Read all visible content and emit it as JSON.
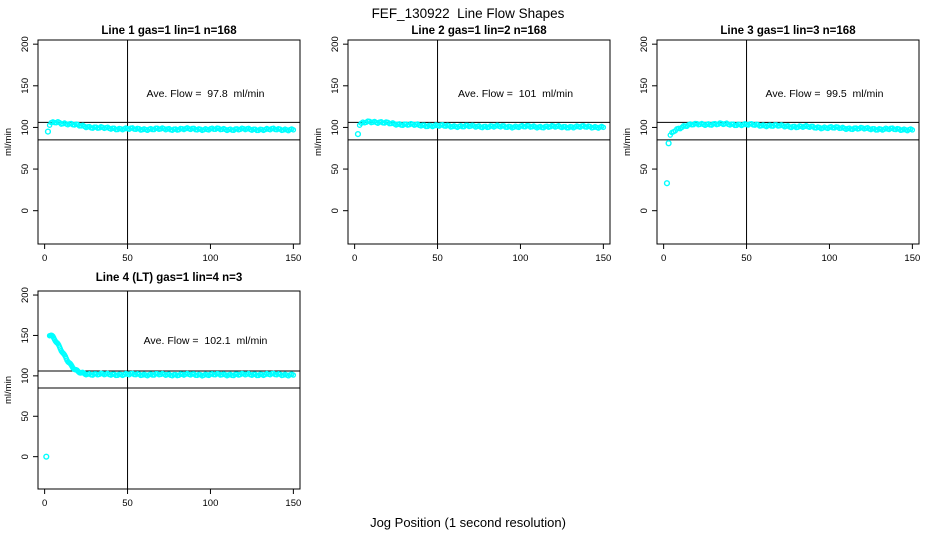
{
  "figure": {
    "title": "FEF_130922  Line Flow Shapes",
    "xlabel": "Jog Position (1 second resolution)",
    "marker_color": "#00FFFF",
    "line_color": "#000000"
  },
  "chart_data": [
    {
      "type": "scatter",
      "title": "Line 1 gas=1 lin=1 n=168",
      "annotation": "Ave. Flow =  97.8  ml/min",
      "ave_flow_ml_min": 97.8,
      "n": 168,
      "ylabel": "ml/min",
      "xlim": [
        -4,
        154
      ],
      "ylim": [
        -40,
        205
      ],
      "xticks": [
        0,
        50,
        100,
        150
      ],
      "yticks": [
        0,
        50,
        100,
        150,
        200
      ],
      "vlines": [
        50
      ],
      "hlines": [
        106,
        85
      ],
      "outlier_points": [
        [
          2,
          95
        ]
      ],
      "curve": [
        [
          3,
          103
        ],
        [
          4,
          105
        ],
        [
          6,
          106.5
        ],
        [
          8,
          106.5
        ],
        [
          10,
          105.5
        ],
        [
          13,
          104.5
        ],
        [
          16,
          103.5
        ],
        [
          20,
          102.5
        ],
        [
          24,
          101.5
        ],
        [
          28,
          100.5
        ],
        [
          33,
          99.5
        ],
        [
          38,
          99
        ],
        [
          45,
          98.5
        ],
        [
          55,
          98
        ],
        [
          70,
          98
        ],
        [
          90,
          98
        ],
        [
          110,
          97.8
        ],
        [
          130,
          97.6
        ],
        [
          150,
          97.6
        ]
      ]
    },
    {
      "type": "scatter",
      "title": "Line 2 gas=1 lin=2 n=168",
      "annotation": "Ave. Flow =  101  ml/min",
      "ave_flow_ml_min": 101,
      "n": 168,
      "ylabel": "ml/min",
      "xlim": [
        -4,
        154
      ],
      "ylim": [
        -40,
        205
      ],
      "xticks": [
        0,
        50,
        100,
        150
      ],
      "yticks": [
        0,
        50,
        100,
        150,
        200
      ],
      "vlines": [
        50
      ],
      "hlines": [
        106,
        85
      ],
      "outlier_points": [
        [
          2,
          92
        ]
      ],
      "curve": [
        [
          3,
          103
        ],
        [
          5,
          105.5
        ],
        [
          7,
          107
        ],
        [
          9,
          107.5
        ],
        [
          11,
          107
        ],
        [
          14,
          106
        ],
        [
          17,
          105.5
        ],
        [
          21,
          105
        ],
        [
          25,
          104.3
        ],
        [
          30,
          103.6
        ],
        [
          36,
          103
        ],
        [
          43,
          102.4
        ],
        [
          50,
          102
        ],
        [
          60,
          101.6
        ],
        [
          75,
          101.2
        ],
        [
          95,
          101
        ],
        [
          115,
          100.8
        ],
        [
          135,
          100.7
        ],
        [
          150,
          100.6
        ]
      ]
    },
    {
      "type": "scatter",
      "title": "Line 3 gas=1 lin=3 n=168",
      "annotation": "Ave. Flow =  99.5  ml/min",
      "ave_flow_ml_min": 99.5,
      "n": 168,
      "ylabel": "ml/min",
      "xlim": [
        -4,
        154
      ],
      "ylim": [
        -40,
        205
      ],
      "xticks": [
        0,
        50,
        100,
        150
      ],
      "yticks": [
        0,
        50,
        100,
        150,
        200
      ],
      "vlines": [
        50
      ],
      "hlines": [
        106,
        85
      ],
      "outlier_points": [
        [
          2,
          33
        ],
        [
          3,
          81
        ]
      ],
      "curve": [
        [
          4,
          90
        ],
        [
          5,
          93
        ],
        [
          6,
          95.5
        ],
        [
          8,
          98
        ],
        [
          10,
          100
        ],
        [
          12,
          101.5
        ],
        [
          15,
          102.7
        ],
        [
          18,
          103.4
        ],
        [
          22,
          103.8
        ],
        [
          27,
          104
        ],
        [
          35,
          104
        ],
        [
          45,
          103.6
        ],
        [
          55,
          103
        ],
        [
          65,
          102.2
        ],
        [
          75,
          101.4
        ],
        [
          85,
          100.7
        ],
        [
          95,
          100
        ],
        [
          105,
          99.4
        ],
        [
          115,
          98.8
        ],
        [
          125,
          98.3
        ],
        [
          135,
          97.9
        ],
        [
          143,
          97.7
        ],
        [
          150,
          97.5
        ]
      ]
    },
    {
      "type": "scatter",
      "title": "Line 4 (LT) gas=1 lin=4 n=3",
      "annotation": "Ave. Flow =  102.1  ml/min",
      "ave_flow_ml_min": 102.1,
      "n": 3,
      "ylabel": "ml/min",
      "xlim": [
        -4,
        154
      ],
      "ylim": [
        -40,
        205
      ],
      "xticks": [
        0,
        50,
        100,
        150
      ],
      "yticks": [
        0,
        50,
        100,
        150,
        200
      ],
      "vlines": [
        50
      ],
      "hlines": [
        106,
        85
      ],
      "outlier_points": [
        [
          1,
          0
        ]
      ],
      "curve": [
        [
          3,
          150
        ],
        [
          4,
          149.5
        ],
        [
          5,
          148
        ],
        [
          6,
          145.5
        ],
        [
          7,
          142.5
        ],
        [
          8,
          139.5
        ],
        [
          9,
          136
        ],
        [
          10,
          132.5
        ],
        [
          11,
          129
        ],
        [
          12,
          125.5
        ],
        [
          13,
          122
        ],
        [
          14,
          118.5
        ],
        [
          15,
          115.5
        ],
        [
          16,
          112.5
        ],
        [
          17,
          110
        ],
        [
          18,
          108
        ],
        [
          19,
          106.3
        ],
        [
          20,
          105
        ],
        [
          22,
          103.8
        ],
        [
          24,
          103
        ],
        [
          26,
          102.5
        ],
        [
          28,
          102.2
        ],
        [
          31,
          102
        ],
        [
          35,
          101.8
        ],
        [
          40,
          101.8
        ],
        [
          50,
          101.8
        ],
        [
          65,
          101.6
        ],
        [
          80,
          101.5
        ],
        [
          100,
          101.5
        ],
        [
          120,
          101.6
        ],
        [
          135,
          101.8
        ],
        [
          150,
          101.5
        ]
      ]
    }
  ]
}
